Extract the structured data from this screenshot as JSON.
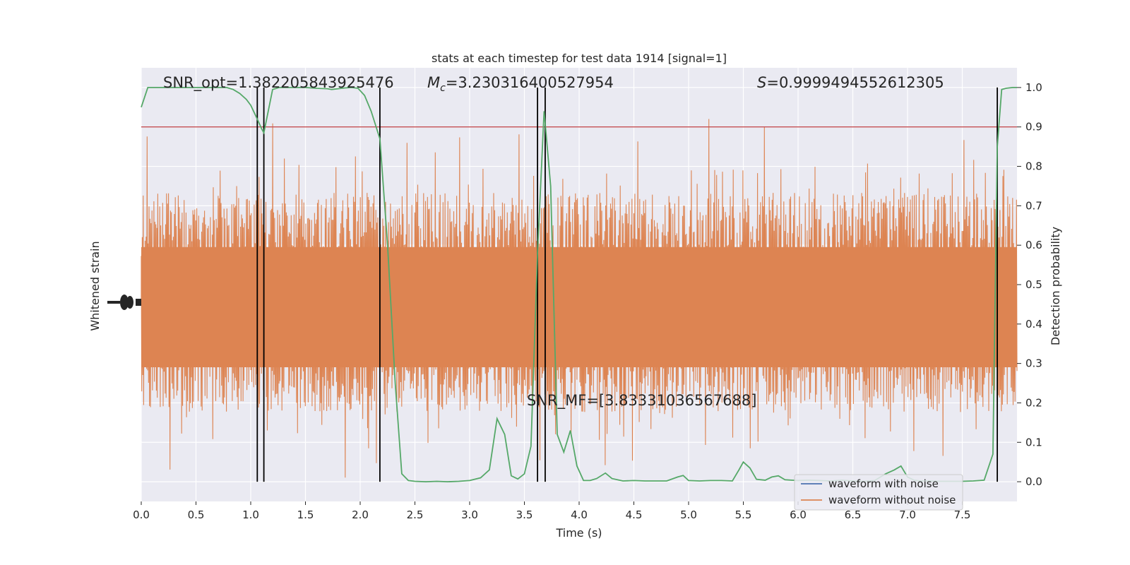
{
  "chart_data": {
    "type": "line",
    "title": "stats at each timestep for test data 1914 [signal=1]",
    "xlabel": "Time (s)",
    "ylabel_left": "Whitened strain",
    "ylabel_right": "Detection probability",
    "xlim": [
      0,
      8
    ],
    "ylim_right": [
      -0.05,
      1.05
    ],
    "x_ticks": [
      0.0,
      0.5,
      1.0,
      1.5,
      2.0,
      2.5,
      3.0,
      3.5,
      4.0,
      4.5,
      5.0,
      5.5,
      6.0,
      6.5,
      7.0,
      7.5
    ],
    "x_tick_labels": [
      "0.0",
      "0.5",
      "1.0",
      "1.5",
      "2.0",
      "2.5",
      "3.0",
      "3.5",
      "4.0",
      "4.5",
      "5.0",
      "5.5",
      "6.0",
      "6.5",
      "7.0",
      "7.5"
    ],
    "y_ticks_right": [
      0.0,
      0.1,
      0.2,
      0.3,
      0.4,
      0.5,
      0.6,
      0.7,
      0.8,
      0.9,
      1.0
    ],
    "y_tick_labels_right": [
      "0.0",
      "0.1",
      "0.2",
      "0.3",
      "0.4",
      "0.5",
      "0.6",
      "0.7",
      "0.8",
      "0.9",
      "1.0"
    ],
    "grid": true,
    "legend_position": "lower-right",
    "colors": {
      "background": "#eaeaf2",
      "grid": "#ffffff",
      "noise": "#4c72b0",
      "strain": "#dd8452",
      "probability": "#55a868",
      "threshold": "#c44e52",
      "boundary": "#000000"
    },
    "series": [
      {
        "name": "waveform with noise",
        "color": "#4c72b0",
        "values": []
      },
      {
        "name": "waveform without noise",
        "color": "#dd8452",
        "values": []
      }
    ],
    "probability_series": {
      "x": [
        0.0,
        0.06,
        0.12,
        0.18,
        0.24,
        0.3,
        0.36,
        0.42,
        0.48,
        0.54,
        0.6,
        0.66,
        0.72,
        0.78,
        0.84,
        0.9,
        0.96,
        1.0,
        1.06,
        1.1,
        1.12,
        1.16,
        1.2,
        1.26,
        1.3,
        1.4,
        1.5,
        1.6,
        1.7,
        1.74,
        1.8,
        1.86,
        1.92,
        1.98,
        2.04,
        2.1,
        2.18,
        2.25,
        2.32,
        2.38,
        2.44,
        2.5,
        2.6,
        2.7,
        2.8,
        2.9,
        3.0,
        3.1,
        3.18,
        3.25,
        3.32,
        3.38,
        3.44,
        3.5,
        3.56,
        3.62,
        3.68,
        3.74,
        3.8,
        3.86,
        3.92,
        3.98,
        4.04,
        4.1,
        4.16,
        4.24,
        4.3,
        4.4,
        4.5,
        4.6,
        4.7,
        4.8,
        4.9,
        4.95,
        5.0,
        5.1,
        5.2,
        5.3,
        5.4,
        5.46,
        5.5,
        5.56,
        5.62,
        5.7,
        5.76,
        5.82,
        5.88,
        5.94,
        6.0,
        6.1,
        6.2,
        6.3,
        6.4,
        6.5,
        6.6,
        6.7,
        6.8,
        6.88,
        6.94,
        7.0,
        7.06,
        7.12,
        7.2,
        7.3,
        7.4,
        7.5,
        7.6,
        7.7,
        7.78,
        7.82,
        7.86,
        7.9,
        7.96,
        8.0
      ],
      "y": [
        0.95,
        1.0,
        1.0,
        1.0,
        1.0,
        1.0,
        1.0,
        1.0,
        1.0,
        1.0,
        1.0,
        1.0,
        1.0,
        1.0,
        0.995,
        0.985,
        0.97,
        0.955,
        0.92,
        0.895,
        0.885,
        0.94,
        0.995,
        1.0,
        1.0,
        1.0,
        1.0,
        0.998,
        0.997,
        0.995,
        0.997,
        0.999,
        1.0,
        0.998,
        0.98,
        0.94,
        0.87,
        0.6,
        0.25,
        0.02,
        0.003,
        0.001,
        0.0,
        0.001,
        0.0,
        0.001,
        0.003,
        0.01,
        0.03,
        0.16,
        0.12,
        0.015,
        0.007,
        0.02,
        0.09,
        0.58,
        0.94,
        0.75,
        0.12,
        0.075,
        0.13,
        0.04,
        0.003,
        0.003,
        0.008,
        0.022,
        0.008,
        0.002,
        0.003,
        0.002,
        0.002,
        0.002,
        0.012,
        0.016,
        0.003,
        0.002,
        0.003,
        0.003,
        0.002,
        0.03,
        0.05,
        0.035,
        0.006,
        0.004,
        0.012,
        0.015,
        0.005,
        0.004,
        0.003,
        0.004,
        0.003,
        0.002,
        0.004,
        0.002,
        0.001,
        0.003,
        0.02,
        0.03,
        0.04,
        0.012,
        0.004,
        0.002,
        0.002,
        0.001,
        0.001,
        0.001,
        0.002,
        0.004,
        0.07,
        0.85,
        0.995,
        0.998,
        1.0,
        1.0
      ]
    },
    "threshold": 0.9,
    "boundaries": [
      1.06,
      1.12,
      2.18,
      3.62,
      3.69,
      7.82
    ],
    "annotations": {
      "snr_opt": "SNR_opt=1.382205843925476",
      "mc_symbol": "M",
      "mc_subscript": "c",
      "mc_value": "=3.230316400527954",
      "s_symbol": "S",
      "s_value": "=0.9999494552612305",
      "snr_mf": "SNR_MF=[3.83331036567688]"
    }
  }
}
